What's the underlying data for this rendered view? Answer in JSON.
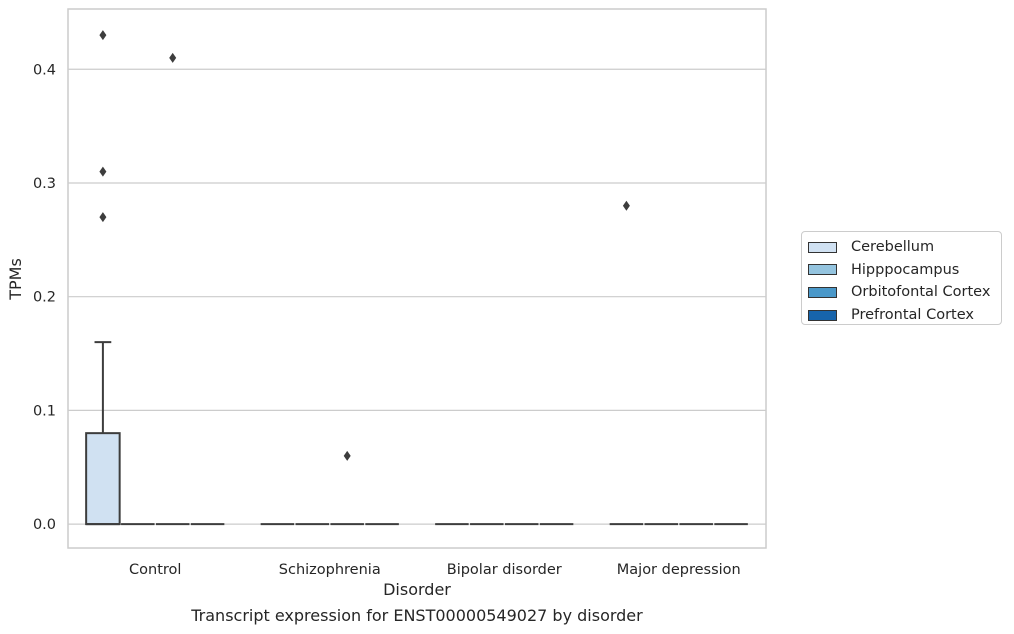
{
  "chart_data": {
    "type": "box",
    "title": "",
    "caption": "Transcript expression for ENST00000549027 by disorder",
    "xlabel": "Disorder",
    "ylabel": "TPMs",
    "ylim": [
      -0.021,
      0.453
    ],
    "yticks": [
      0.0,
      0.1,
      0.2,
      0.3,
      0.4
    ],
    "ytick_labels": [
      "0.0",
      "0.1",
      "0.2",
      "0.3",
      "0.4"
    ],
    "categories": [
      "Control",
      "Schizophrenia",
      "Bipolar disorder",
      "Major depression"
    ],
    "grid": true,
    "legend_position": "right",
    "series": [
      {
        "name": "Cerebellum",
        "color": "#d0e1f2",
        "boxes": [
          {
            "q1": 0,
            "median": 0,
            "q3": 0.08,
            "whislo": 0,
            "whishi": 0.16,
            "fliers": [
              0.43,
              0.31,
              0.27
            ]
          },
          {
            "q1": 0,
            "median": 0,
            "q3": 0,
            "whislo": 0,
            "whishi": 0,
            "fliers": []
          },
          {
            "q1": 0,
            "median": 0,
            "q3": 0,
            "whislo": 0,
            "whishi": 0,
            "fliers": []
          },
          {
            "q1": 0,
            "median": 0,
            "q3": 0,
            "whislo": 0,
            "whishi": 0,
            "fliers": [
              0.28
            ]
          }
        ]
      },
      {
        "name": "Hipppocampus",
        "color": "#94c4df",
        "boxes": [
          {
            "q1": 0,
            "median": 0,
            "q3": 0,
            "whislo": 0,
            "whishi": 0,
            "fliers": []
          },
          {
            "q1": 0,
            "median": 0,
            "q3": 0,
            "whislo": 0,
            "whishi": 0,
            "fliers": []
          },
          {
            "q1": 0,
            "median": 0,
            "q3": 0,
            "whislo": 0,
            "whishi": 0,
            "fliers": []
          },
          {
            "q1": 0,
            "median": 0,
            "q3": 0,
            "whislo": 0,
            "whishi": 0,
            "fliers": []
          }
        ]
      },
      {
        "name": "Orbitofontal Cortex",
        "color": "#4a98c9",
        "boxes": [
          {
            "q1": 0,
            "median": 0,
            "q3": 0,
            "whislo": 0,
            "whishi": 0,
            "fliers": [
              0.41
            ]
          },
          {
            "q1": 0,
            "median": 0,
            "q3": 0,
            "whislo": 0,
            "whishi": 0,
            "fliers": [
              0.06
            ]
          },
          {
            "q1": 0,
            "median": 0,
            "q3": 0,
            "whislo": 0,
            "whishi": 0,
            "fliers": []
          },
          {
            "q1": 0,
            "median": 0,
            "q3": 0,
            "whislo": 0,
            "whishi": 0,
            "fliers": []
          }
        ]
      },
      {
        "name": "Prefrontal Cortex",
        "color": "#1764ab",
        "boxes": [
          {
            "q1": 0,
            "median": 0,
            "q3": 0,
            "whislo": 0,
            "whishi": 0,
            "fliers": []
          },
          {
            "q1": 0,
            "median": 0,
            "q3": 0,
            "whislo": 0,
            "whishi": 0,
            "fliers": []
          },
          {
            "q1": 0,
            "median": 0,
            "q3": 0,
            "whislo": 0,
            "whishi": 0,
            "fliers": []
          },
          {
            "q1": 0,
            "median": 0,
            "q3": 0,
            "whislo": 0,
            "whishi": 0,
            "fliers": []
          }
        ]
      }
    ]
  }
}
